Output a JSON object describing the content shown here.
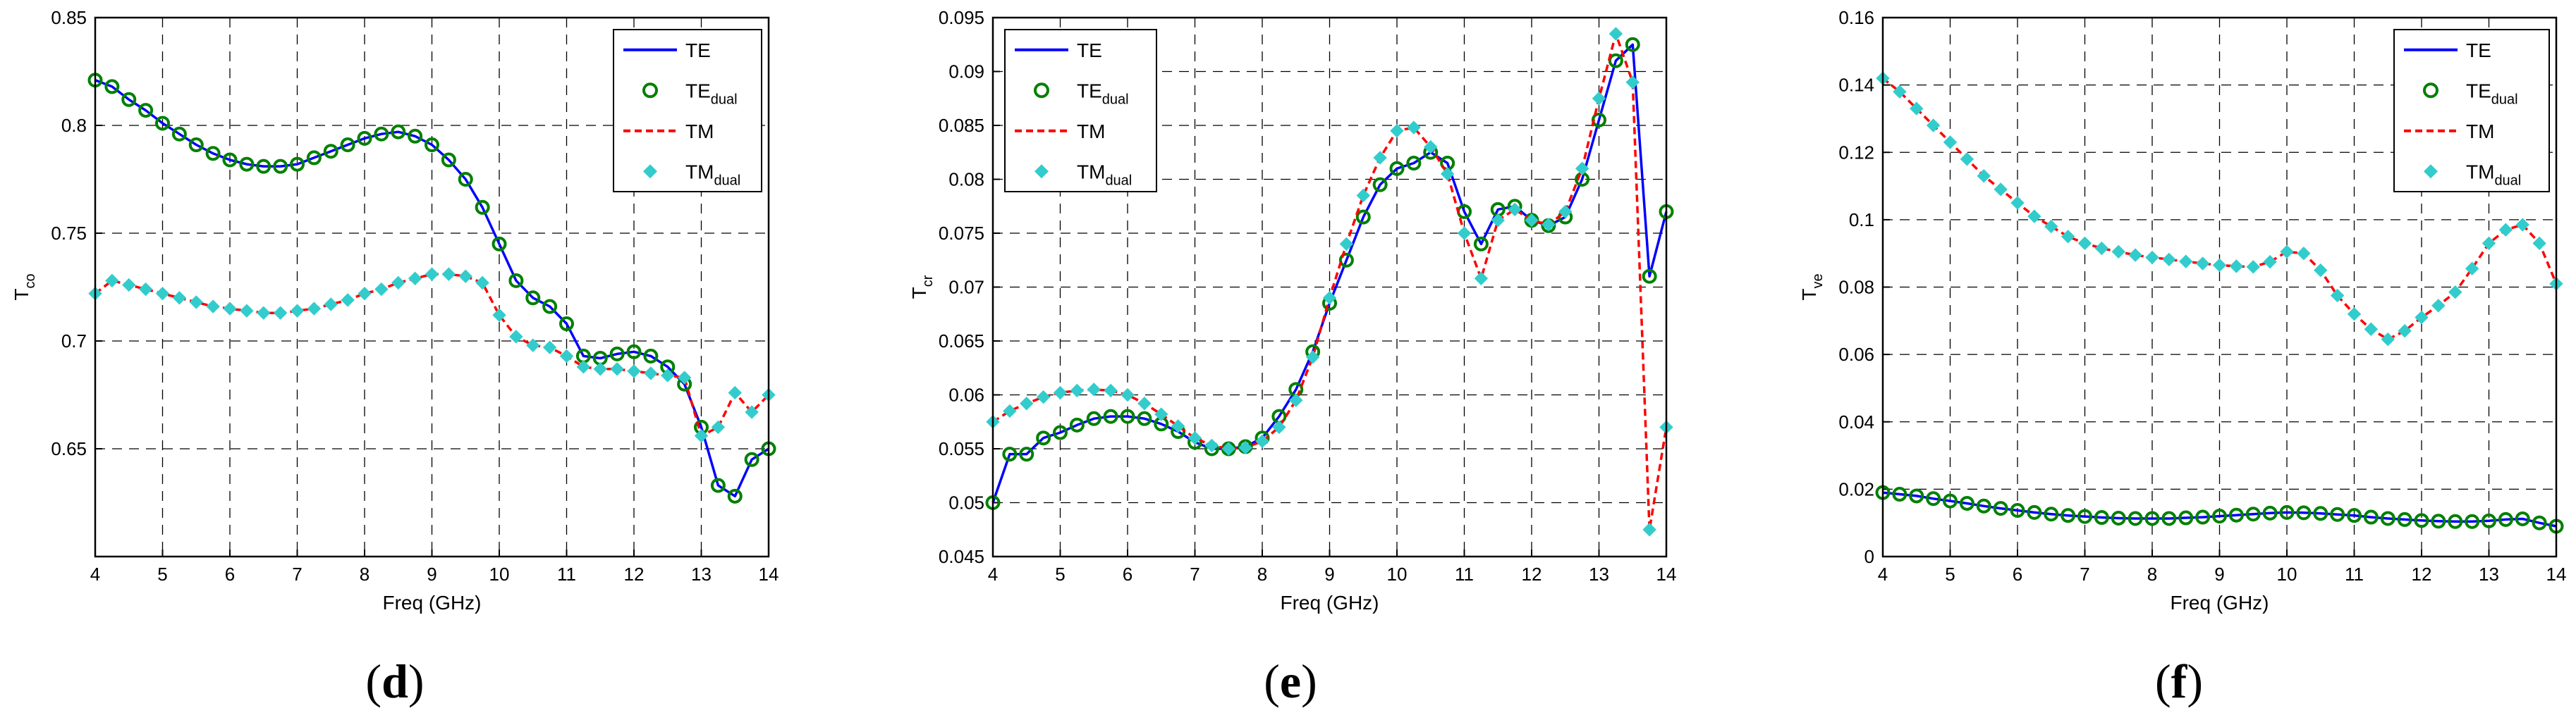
{
  "chart_data": [
    {
      "type": "line",
      "panel_label": "d",
      "xlabel": "Freq (GHz)",
      "ylabel": "T",
      "ylabel_sub": "co",
      "xlim": [
        4,
        14
      ],
      "ylim": [
        0.6,
        0.85
      ],
      "xticks": [
        4,
        5,
        6,
        7,
        8,
        9,
        10,
        11,
        12,
        13,
        14
      ],
      "yticks": [
        0.65,
        0.7,
        0.75,
        0.8,
        0.85
      ],
      "grid": true,
      "legend_position": "top-right",
      "legend": [
        {
          "name": "TE",
          "sub": "",
          "style": "solid-line",
          "color": "#0000ff"
        },
        {
          "name": "TE",
          "sub": "dual",
          "style": "circle-marker",
          "color": "#008000"
        },
        {
          "name": "TM",
          "sub": "",
          "style": "dashed-line",
          "color": "#ff0000"
        },
        {
          "name": "TM",
          "sub": "dual",
          "style": "diamond-marker",
          "color": "#33cccc"
        }
      ],
      "x": [
        4.0,
        4.25,
        4.5,
        4.75,
        5.0,
        5.25,
        5.5,
        5.75,
        6.0,
        6.25,
        6.5,
        6.75,
        7.0,
        7.25,
        7.5,
        7.75,
        8.0,
        8.25,
        8.5,
        8.75,
        9.0,
        9.25,
        9.5,
        9.75,
        10.0,
        10.25,
        10.5,
        10.75,
        11.0,
        11.25,
        11.5,
        11.75,
        12.0,
        12.25,
        12.5,
        12.75,
        13.0,
        13.25,
        13.5,
        13.75,
        14.0
      ],
      "series": [
        {
          "name": "TE",
          "values": [
            0.821,
            0.818,
            0.812,
            0.807,
            0.801,
            0.796,
            0.791,
            0.787,
            0.784,
            0.782,
            0.781,
            0.781,
            0.782,
            0.785,
            0.788,
            0.791,
            0.794,
            0.796,
            0.797,
            0.795,
            0.791,
            0.784,
            0.775,
            0.762,
            0.745,
            0.728,
            0.72,
            0.716,
            0.708,
            0.693,
            0.692,
            0.694,
            0.695,
            0.693,
            0.688,
            0.68,
            0.66,
            0.633,
            0.628,
            0.645,
            0.65
          ]
        },
        {
          "name": "TE_dual",
          "values": [
            0.821,
            0.818,
            0.812,
            0.807,
            0.801,
            0.796,
            0.791,
            0.787,
            0.784,
            0.782,
            0.781,
            0.781,
            0.782,
            0.785,
            0.788,
            0.791,
            0.794,
            0.796,
            0.797,
            0.795,
            0.791,
            0.784,
            0.775,
            0.762,
            0.745,
            0.728,
            0.72,
            0.716,
            0.708,
            0.693,
            0.692,
            0.694,
            0.695,
            0.693,
            0.688,
            0.68,
            0.66,
            0.633,
            0.628,
            0.645,
            0.65
          ]
        },
        {
          "name": "TM",
          "values": [
            0.722,
            0.728,
            0.726,
            0.724,
            0.722,
            0.72,
            0.718,
            0.716,
            0.715,
            0.714,
            0.713,
            0.713,
            0.714,
            0.715,
            0.717,
            0.719,
            0.722,
            0.724,
            0.727,
            0.729,
            0.731,
            0.731,
            0.73,
            0.727,
            0.712,
            0.702,
            0.698,
            0.697,
            0.693,
            0.688,
            0.687,
            0.687,
            0.686,
            0.685,
            0.684,
            0.683,
            0.656,
            0.66,
            0.676,
            0.667,
            0.675
          ]
        },
        {
          "name": "TM_dual",
          "values": [
            0.722,
            0.728,
            0.726,
            0.724,
            0.722,
            0.72,
            0.718,
            0.716,
            0.715,
            0.714,
            0.713,
            0.713,
            0.714,
            0.715,
            0.717,
            0.719,
            0.722,
            0.724,
            0.727,
            0.729,
            0.731,
            0.731,
            0.73,
            0.727,
            0.712,
            0.702,
            0.698,
            0.697,
            0.693,
            0.688,
            0.687,
            0.687,
            0.686,
            0.685,
            0.684,
            0.683,
            0.656,
            0.66,
            0.676,
            0.667,
            0.675
          ]
        }
      ]
    },
    {
      "type": "line",
      "panel_label": "e",
      "xlabel": "Freq (GHz)",
      "ylabel": "T",
      "ylabel_sub": "cr",
      "xlim": [
        4,
        14
      ],
      "ylim": [
        0.045,
        0.095
      ],
      "xticks": [
        4,
        5,
        6,
        7,
        8,
        9,
        10,
        11,
        12,
        13,
        14
      ],
      "yticks": [
        0.045,
        0.05,
        0.055,
        0.06,
        0.065,
        0.07,
        0.075,
        0.08,
        0.085,
        0.09,
        0.095
      ],
      "grid": true,
      "legend_position": "top-left",
      "legend": [
        {
          "name": "TE",
          "sub": "",
          "style": "solid-line",
          "color": "#0000ff"
        },
        {
          "name": "TE",
          "sub": "dual",
          "style": "circle-marker",
          "color": "#008000"
        },
        {
          "name": "TM",
          "sub": "",
          "style": "dashed-line",
          "color": "#ff0000"
        },
        {
          "name": "TM",
          "sub": "dual",
          "style": "diamond-marker",
          "color": "#33cccc"
        }
      ],
      "x": [
        4.0,
        4.25,
        4.5,
        4.75,
        5.0,
        5.25,
        5.5,
        5.75,
        6.0,
        6.25,
        6.5,
        6.75,
        7.0,
        7.25,
        7.5,
        7.75,
        8.0,
        8.25,
        8.5,
        8.75,
        9.0,
        9.25,
        9.5,
        9.75,
        10.0,
        10.25,
        10.5,
        10.75,
        11.0,
        11.25,
        11.5,
        11.75,
        12.0,
        12.25,
        12.5,
        12.75,
        13.0,
        13.25,
        13.5,
        13.75,
        14.0
      ],
      "series": [
        {
          "name": "TE",
          "values": [
            0.05,
            0.0545,
            0.0545,
            0.056,
            0.0565,
            0.0572,
            0.0578,
            0.058,
            0.058,
            0.0578,
            0.0573,
            0.0566,
            0.0556,
            0.055,
            0.055,
            0.0552,
            0.056,
            0.058,
            0.0605,
            0.064,
            0.0685,
            0.0725,
            0.0765,
            0.0795,
            0.081,
            0.0815,
            0.0825,
            0.0815,
            0.077,
            0.074,
            0.0772,
            0.0775,
            0.0762,
            0.0757,
            0.0765,
            0.08,
            0.0855,
            0.091,
            0.0925,
            0.071,
            0.077
          ]
        },
        {
          "name": "TE_dual",
          "values": [
            0.05,
            0.0545,
            0.0545,
            0.056,
            0.0565,
            0.0572,
            0.0578,
            0.058,
            0.058,
            0.0578,
            0.0573,
            0.0566,
            0.0556,
            0.055,
            0.055,
            0.0552,
            0.056,
            0.058,
            0.0605,
            0.064,
            0.0685,
            0.0725,
            0.0765,
            0.0795,
            0.081,
            0.0815,
            0.0825,
            0.0815,
            0.077,
            0.074,
            0.0772,
            0.0775,
            0.0762,
            0.0757,
            0.0765,
            0.08,
            0.0855,
            0.091,
            0.0925,
            0.071,
            0.077
          ]
        },
        {
          "name": "TM",
          "values": [
            0.0575,
            0.0585,
            0.0592,
            0.0598,
            0.0602,
            0.0604,
            0.0605,
            0.0604,
            0.06,
            0.0592,
            0.0582,
            0.0571,
            0.056,
            0.0553,
            0.055,
            0.0551,
            0.0557,
            0.057,
            0.0595,
            0.0635,
            0.069,
            0.074,
            0.0785,
            0.082,
            0.0845,
            0.0848,
            0.083,
            0.0805,
            0.075,
            0.0708,
            0.0762,
            0.0772,
            0.0762,
            0.0758,
            0.077,
            0.081,
            0.0875,
            0.0935,
            0.089,
            0.0475,
            0.057
          ]
        },
        {
          "name": "TM_dual",
          "values": [
            0.0575,
            0.0585,
            0.0592,
            0.0598,
            0.0602,
            0.0604,
            0.0605,
            0.0604,
            0.06,
            0.0592,
            0.0582,
            0.0571,
            0.056,
            0.0553,
            0.055,
            0.0551,
            0.0557,
            0.057,
            0.0595,
            0.0635,
            0.069,
            0.074,
            0.0785,
            0.082,
            0.0845,
            0.0848,
            0.083,
            0.0805,
            0.075,
            0.0708,
            0.0762,
            0.0772,
            0.0762,
            0.0758,
            0.077,
            0.081,
            0.0875,
            0.0935,
            0.089,
            0.0475,
            0.057
          ]
        }
      ]
    },
    {
      "type": "line",
      "panel_label": "f",
      "xlabel": "Freq (GHz)",
      "ylabel": "T",
      "ylabel_sub": "ve",
      "xlim": [
        4,
        14
      ],
      "ylim": [
        0,
        0.16
      ],
      "xticks": [
        4,
        5,
        6,
        7,
        8,
        9,
        10,
        11,
        12,
        13,
        14
      ],
      "yticks": [
        0,
        0.02,
        0.04,
        0.06,
        0.08,
        0.1,
        0.12,
        0.14,
        0.16
      ],
      "grid": true,
      "legend_position": "top-right",
      "legend": [
        {
          "name": "TE",
          "sub": "",
          "style": "solid-line",
          "color": "#0000ff"
        },
        {
          "name": "TE",
          "sub": "dual",
          "style": "circle-marker",
          "color": "#008000"
        },
        {
          "name": "TM",
          "sub": "",
          "style": "dashed-line",
          "color": "#ff0000"
        },
        {
          "name": "TM",
          "sub": "dual",
          "style": "diamond-marker",
          "color": "#33cccc"
        }
      ],
      "x": [
        4.0,
        4.25,
        4.5,
        4.75,
        5.0,
        5.25,
        5.5,
        5.75,
        6.0,
        6.25,
        6.5,
        6.75,
        7.0,
        7.25,
        7.5,
        7.75,
        8.0,
        8.25,
        8.5,
        8.75,
        9.0,
        9.25,
        9.5,
        9.75,
        10.0,
        10.25,
        10.5,
        10.75,
        11.0,
        11.25,
        11.5,
        11.75,
        12.0,
        12.25,
        12.5,
        12.75,
        13.0,
        13.25,
        13.5,
        13.75,
        14.0
      ],
      "series": [
        {
          "name": "TE",
          "values": [
            0.019,
            0.0185,
            0.018,
            0.0172,
            0.0165,
            0.0158,
            0.015,
            0.0143,
            0.0137,
            0.0131,
            0.0126,
            0.0122,
            0.0119,
            0.0116,
            0.0114,
            0.0113,
            0.0113,
            0.0113,
            0.0115,
            0.0117,
            0.012,
            0.0123,
            0.0126,
            0.0129,
            0.0131,
            0.013,
            0.0128,
            0.0125,
            0.0122,
            0.0117,
            0.0113,
            0.011,
            0.0107,
            0.0105,
            0.0104,
            0.0104,
            0.0106,
            0.011,
            0.0112,
            0.01,
            0.009
          ]
        },
        {
          "name": "TE_dual",
          "values": [
            0.019,
            0.0185,
            0.018,
            0.0172,
            0.0165,
            0.0158,
            0.015,
            0.0143,
            0.0137,
            0.0131,
            0.0126,
            0.0122,
            0.0119,
            0.0116,
            0.0114,
            0.0113,
            0.0113,
            0.0113,
            0.0115,
            0.0117,
            0.012,
            0.0123,
            0.0126,
            0.0129,
            0.0131,
            0.013,
            0.0128,
            0.0125,
            0.0122,
            0.0117,
            0.0113,
            0.011,
            0.0107,
            0.0105,
            0.0104,
            0.0104,
            0.0106,
            0.011,
            0.0112,
            0.01,
            0.009
          ]
        },
        {
          "name": "TM",
          "values": [
            0.142,
            0.138,
            0.133,
            0.128,
            0.123,
            0.118,
            0.113,
            0.109,
            0.105,
            0.101,
            0.098,
            0.095,
            0.093,
            0.0915,
            0.0905,
            0.0895,
            0.0888,
            0.0882,
            0.0876,
            0.087,
            0.0865,
            0.0862,
            0.086,
            0.0875,
            0.0905,
            0.09,
            0.085,
            0.0775,
            0.072,
            0.0675,
            0.0645,
            0.067,
            0.071,
            0.0745,
            0.0785,
            0.0855,
            0.093,
            0.097,
            0.0985,
            0.093,
            0.081
          ]
        },
        {
          "name": "TM_dual",
          "values": [
            0.142,
            0.138,
            0.133,
            0.128,
            0.123,
            0.118,
            0.113,
            0.109,
            0.105,
            0.101,
            0.098,
            0.095,
            0.093,
            0.0915,
            0.0905,
            0.0895,
            0.0888,
            0.0882,
            0.0876,
            0.087,
            0.0865,
            0.0862,
            0.086,
            0.0875,
            0.0905,
            0.09,
            0.085,
            0.0775,
            0.072,
            0.0675,
            0.0645,
            0.067,
            0.071,
            0.0745,
            0.0785,
            0.0855,
            0.093,
            0.097,
            0.0985,
            0.093,
            0.081
          ]
        }
      ]
    }
  ]
}
